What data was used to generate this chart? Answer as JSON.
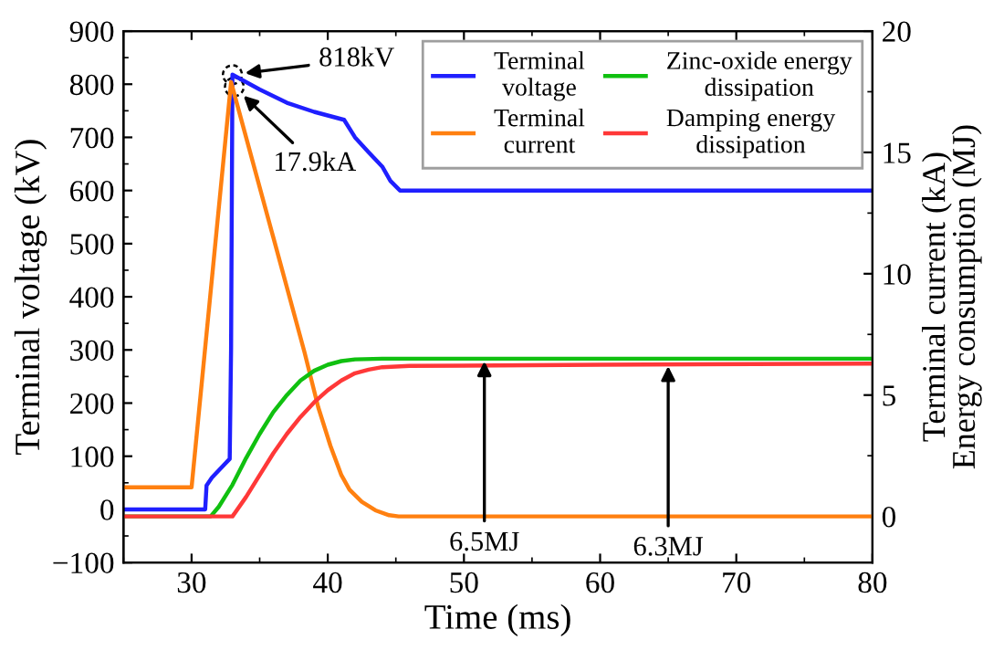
{
  "chart_data": {
    "type": "line",
    "xlabel": "Time (ms)",
    "ylabel": "Terminal voltage (kV)",
    "y2label": "Terminal current (kA)\nEnergy consumption (MJ)",
    "xlim": [
      25,
      80
    ],
    "xticks": [
      30,
      40,
      50,
      60,
      70,
      80
    ],
    "ylim": [
      -100,
      900
    ],
    "yticks": [
      -100,
      0,
      100,
      200,
      300,
      400,
      500,
      600,
      700,
      800,
      900
    ],
    "y2lim": [
      -1.9,
      20
    ],
    "y2ticks": [
      0,
      5,
      10,
      15,
      20
    ],
    "grid": false,
    "legend": "top right",
    "line_style": "solid",
    "marker": "none",
    "series": [
      {
        "name": "Terminal\nvoltage",
        "color": "#1f1fff",
        "x": [
          25,
          31,
          31.1,
          31.5,
          32.8,
          32.9,
          33.0,
          35,
          37,
          39,
          41.2,
          42,
          43,
          44,
          44.6,
          45.3,
          46,
          60,
          80
        ],
        "values": [
          0,
          0,
          45,
          60,
          95,
          300,
          818,
          790,
          765,
          748,
          733,
          700,
          672,
          645,
          618,
          600,
          600,
          600,
          600
        ]
      },
      {
        "name": "Terminal\ncurrent",
        "axis": "y2",
        "color": "#ff8010",
        "x": [
          25,
          30,
          32.9,
          36,
          38.3,
          39.3,
          40.2,
          41,
          41.6,
          42.5,
          43.5,
          44.5,
          45.2,
          60,
          80
        ],
        "values": [
          1.2,
          1.2,
          17.9,
          11.5,
          6.75,
          4.5,
          2.9,
          1.7,
          1.1,
          0.6,
          0.25,
          0.05,
          0,
          0,
          0
        ]
      },
      {
        "name": "Zinc-oxide energy\ndissipation",
        "axis": "y2",
        "color": "#10c010",
        "x": [
          25,
          31.4,
          32,
          33,
          34,
          35,
          36,
          37,
          38,
          39,
          40,
          41,
          42,
          44,
          60,
          80
        ],
        "values": [
          0,
          0,
          0.4,
          1.3,
          2.4,
          3.4,
          4.3,
          5.0,
          5.6,
          6.0,
          6.25,
          6.4,
          6.47,
          6.5,
          6.5,
          6.5
        ]
      },
      {
        "name": "Damping energy\ndissipation",
        "axis": "y2",
        "color": "#ff3838",
        "x": [
          25,
          33,
          34,
          35,
          36,
          37,
          38,
          39,
          40,
          41,
          42,
          43,
          44,
          46,
          60,
          80
        ],
        "values": [
          0,
          0,
          0.8,
          1.7,
          2.6,
          3.4,
          4.1,
          4.7,
          5.2,
          5.6,
          5.9,
          6.05,
          6.15,
          6.2,
          6.25,
          6.3
        ]
      }
    ],
    "annotations": [
      {
        "text": "818kV",
        "x": 33,
        "y": 818
      },
      "17.9kA",
      {
        "text": "6.5MJ",
        "x": 51.5,
        "y": 6.5
      },
      {
        "text": "6.3MJ",
        "x": 65,
        "y": 6.3
      }
    ]
  }
}
